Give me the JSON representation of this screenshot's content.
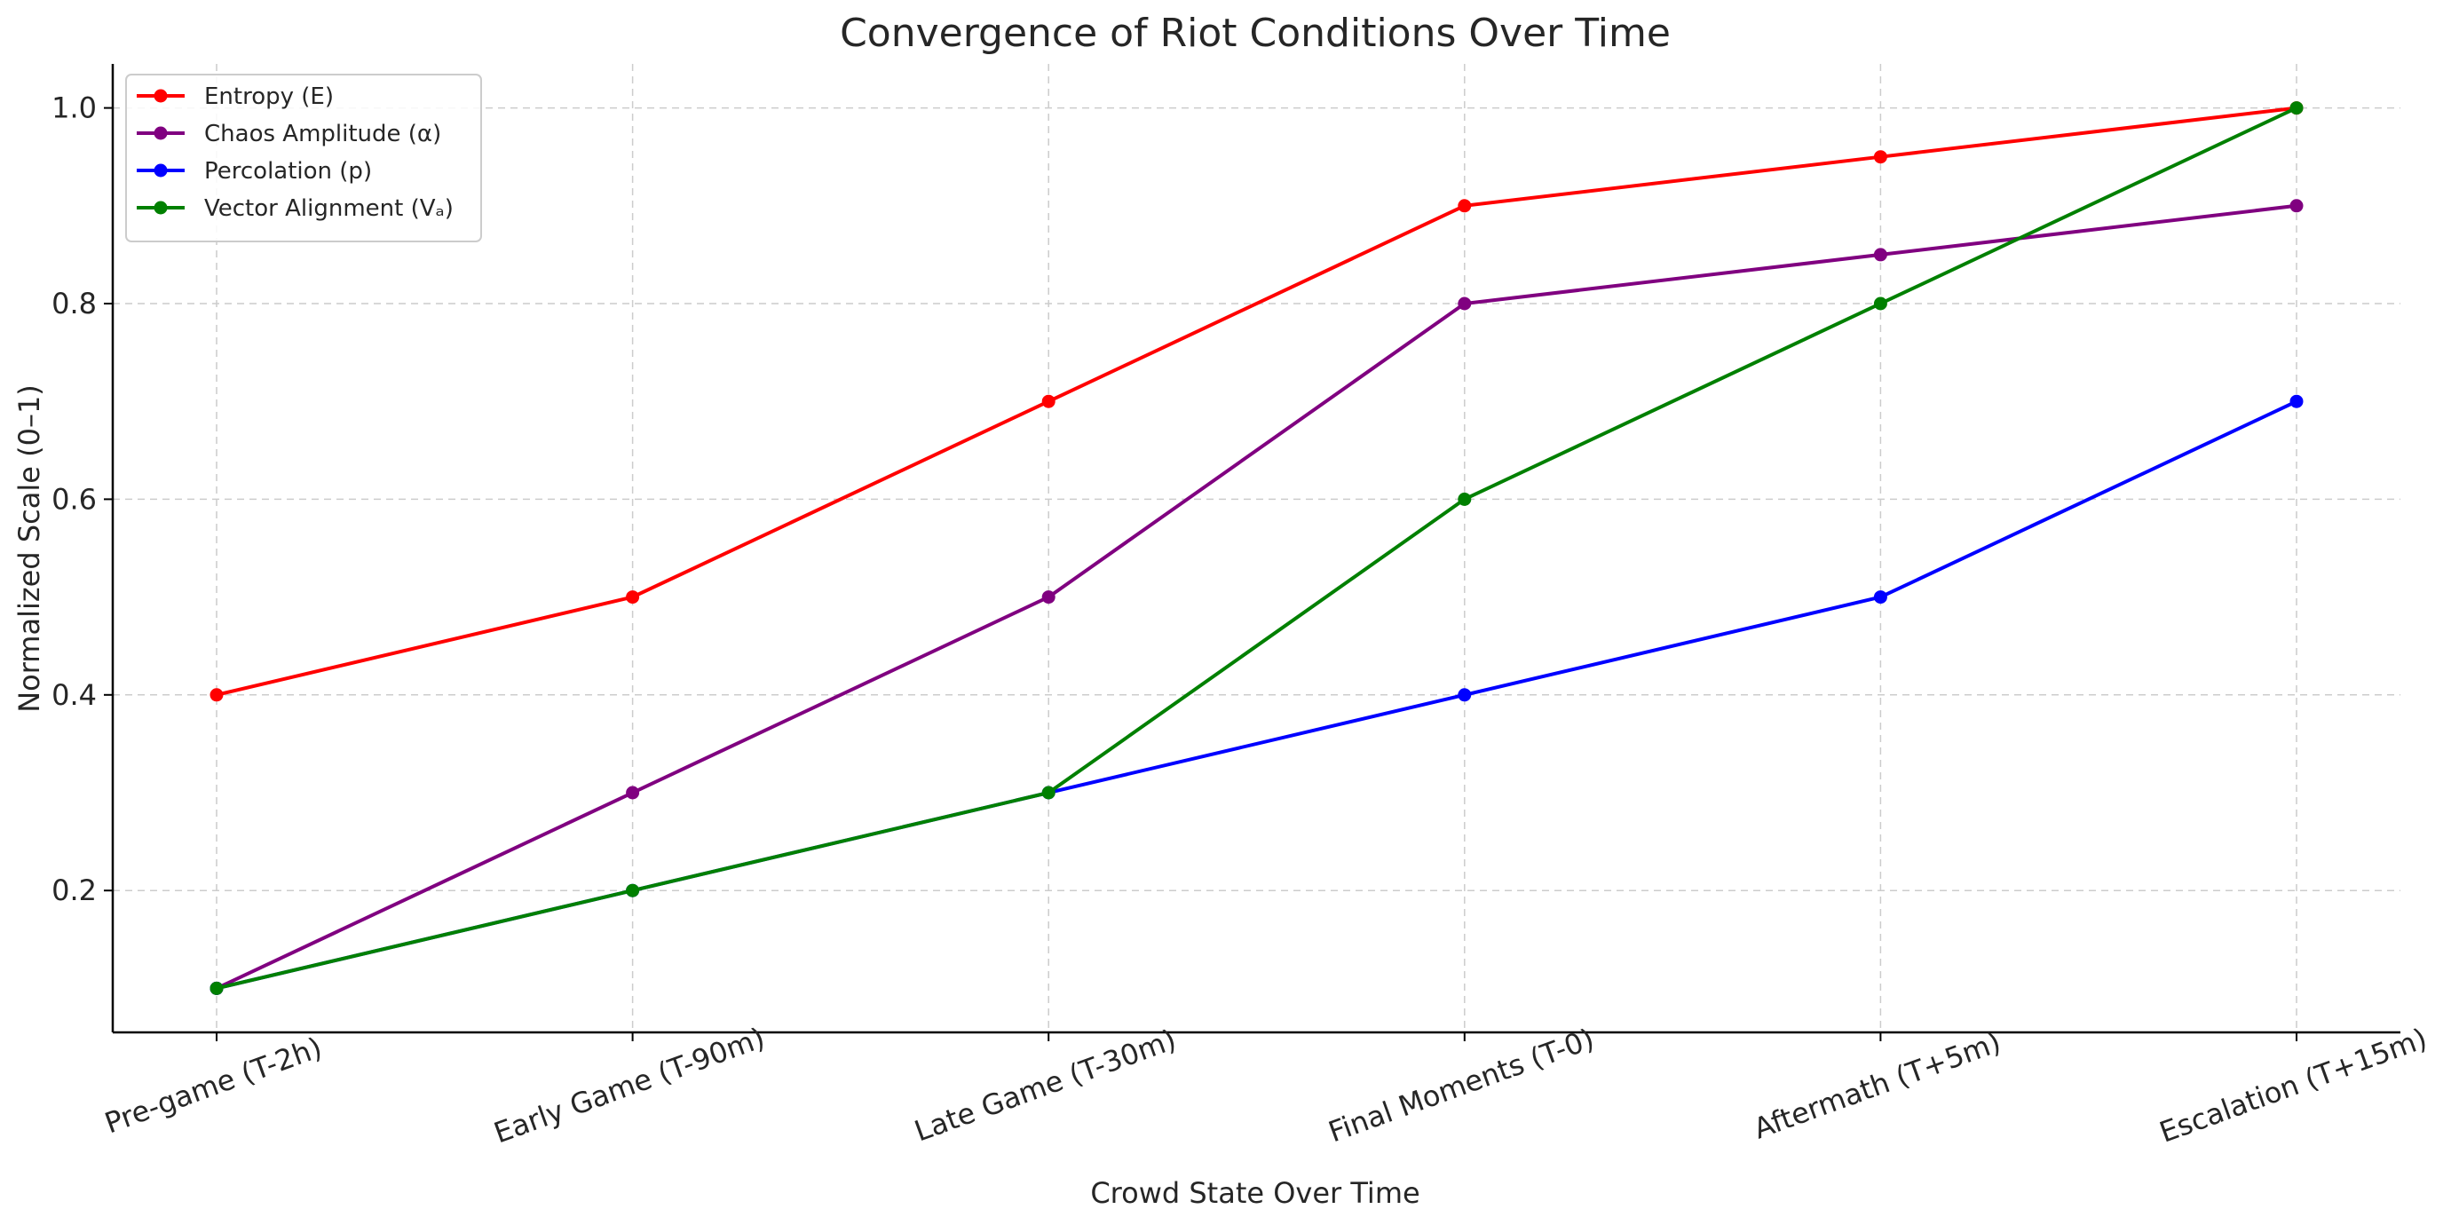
{
  "chart_data": {
    "type": "line",
    "title": "Convergence of Riot Conditions Over Time",
    "xlabel": "Crowd State Over Time",
    "ylabel": "Normalized Scale (0–1)",
    "categories": [
      "Pre-game (T-2h)",
      "Early Game (T-90m)",
      "Late Game (T-30m)",
      "Final Moments (T-0)",
      "Aftermath (T+5m)",
      "Escalation (T+15m)"
    ],
    "yticks": [
      "0.2",
      "0.4",
      "0.6",
      "0.8",
      "1.0"
    ],
    "ylim": [
      0.055,
      1.045
    ],
    "grid": true,
    "legend_position": "top-left",
    "series": [
      {
        "name": "Entropy (E)",
        "color": "#ff0000",
        "values": [
          0.4,
          0.5,
          0.7,
          0.9,
          0.95,
          1.0
        ]
      },
      {
        "name": "Chaos Amplitude (α)",
        "color": "#800080",
        "values": [
          0.1,
          0.3,
          0.5,
          0.8,
          0.85,
          0.9
        ]
      },
      {
        "name": "Percolation (p)",
        "color": "#0000ff",
        "values": [
          0.1,
          0.2,
          0.3,
          0.4,
          0.5,
          0.7
        ]
      },
      {
        "name": "Vector Alignment (Vₐ)",
        "color": "#008000",
        "values": [
          0.1,
          0.2,
          0.3,
          0.6,
          0.8,
          1.0
        ]
      }
    ]
  }
}
